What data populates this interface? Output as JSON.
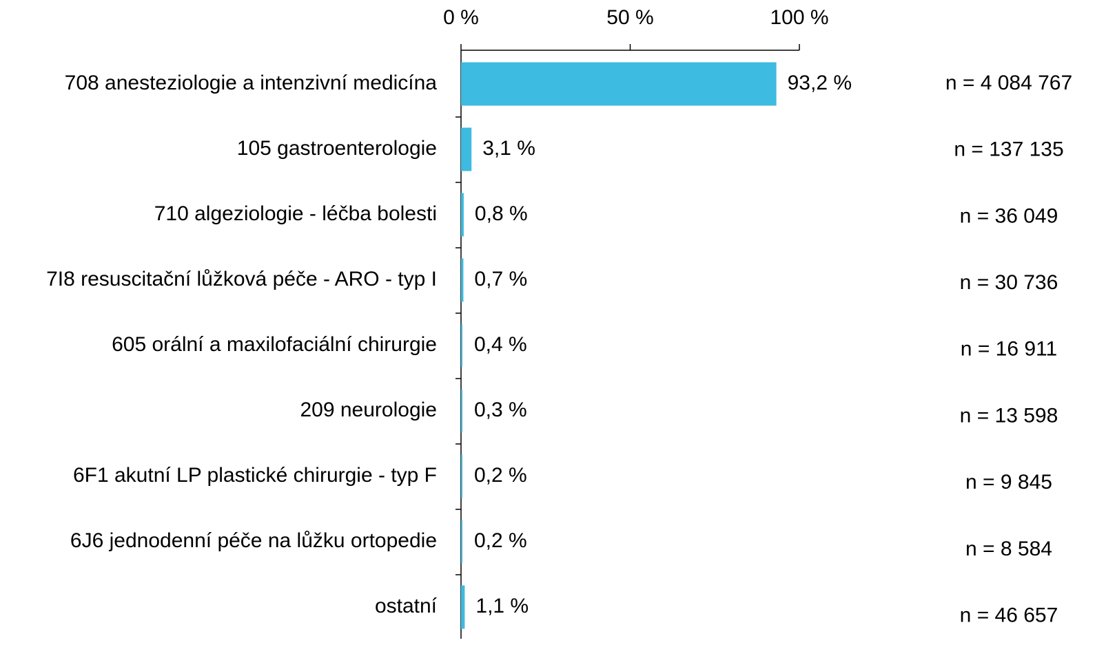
{
  "chart_data": {
    "type": "barh",
    "categories": [
      "708 anesteziologie a intenzivní medicína",
      "105 gastroenterologie",
      "710 algeziologie - léčba bolesti",
      "7I8 resuscitační lůžková péče - ARO - typ I",
      "605 orální a maxilofaciální chirurgie",
      "209 neurologie",
      "6F1 akutní LP plastické chirurgie - typ F",
      "6J6 jednodenní péče na lůžku ortopedie",
      "ostatní"
    ],
    "values": [
      93.2,
      3.1,
      0.8,
      0.7,
      0.4,
      0.3,
      0.2,
      0.2,
      1.1
    ],
    "value_labels": [
      "93,2 %",
      "3,1 %",
      "0,8 %",
      "0,7 %",
      "0,4 %",
      "0,3 %",
      "0,2 %",
      "0,2 %",
      "1,1 %"
    ],
    "n_labels": [
      "n = 4 084 767",
      "n = 137 135",
      "n = 36 049",
      "n = 30 736",
      "n = 16 911",
      "n = 13 598",
      "n = 9 845",
      "n = 8 584",
      "n = 46 657"
    ],
    "color": "#3dbbe0",
    "xlim": [
      0,
      100
    ],
    "xticks": [
      {
        "value": 0,
        "label": "0 %"
      },
      {
        "value": 50,
        "label": "50 %"
      },
      {
        "value": 100,
        "label": "100 %"
      }
    ]
  }
}
